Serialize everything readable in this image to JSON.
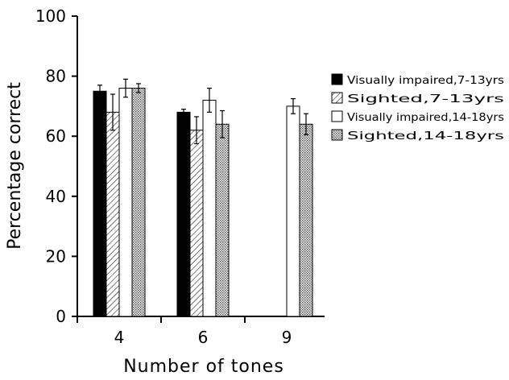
{
  "chart_data": {
    "type": "bar",
    "title": "",
    "xlabel": "Number of tones",
    "ylabel": "Percentage correct",
    "categories": [
      "4",
      "6",
      "9"
    ],
    "ylim": [
      0,
      100
    ],
    "yticks": [
      "0",
      "20",
      "40",
      "60",
      "80",
      "100"
    ],
    "grid": false,
    "legend_position": "right",
    "series": [
      {
        "name": "Visually impaired,7-13yrs",
        "pattern": "solid-black",
        "values": [
          75,
          68,
          null
        ],
        "errors": [
          2,
          1,
          null
        ]
      },
      {
        "name": "Sighted,7-13yrs",
        "pattern": "diagonal-hatch",
        "values": [
          68,
          62,
          null
        ],
        "errors": [
          6,
          4.5,
          null
        ]
      },
      {
        "name": "Visually impaired,14-18yrs",
        "pattern": "white",
        "values": [
          76,
          72,
          70
        ],
        "errors": [
          3,
          4,
          2.5
        ]
      },
      {
        "name": "Sighted,14-18yrs",
        "pattern": "dense-hatch",
        "values": [
          76,
          64,
          64
        ],
        "errors": [
          1.5,
          4.5,
          3.5
        ]
      }
    ]
  }
}
